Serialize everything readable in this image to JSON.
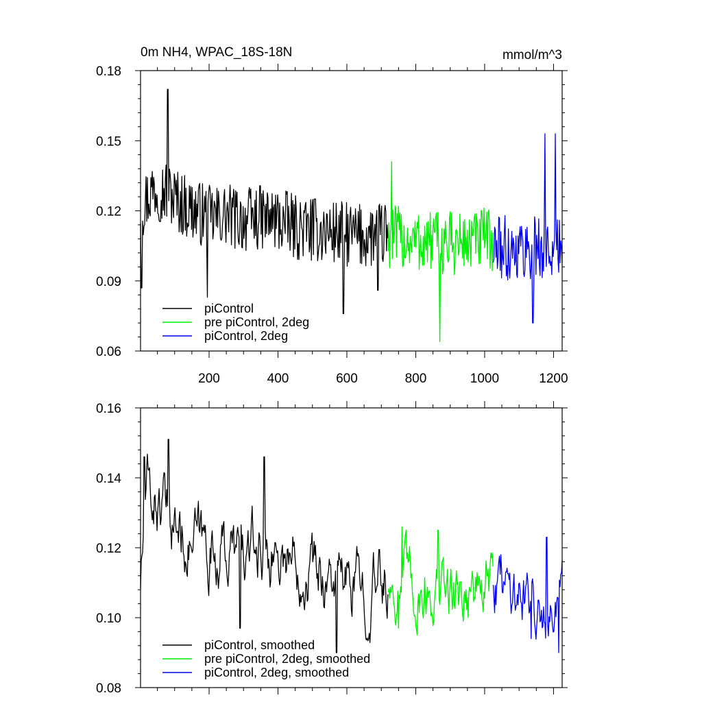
{
  "chart_data": [
    {
      "type": "line",
      "title_left": "0m NH4, WPAC_18S-18N",
      "title_right": "mmol/m^3",
      "xlabel": "",
      "ylabel": "",
      "xlim": [
        1,
        1225
      ],
      "ylim": [
        0.06,
        0.18
      ],
      "x_ticks": [
        200,
        400,
        600,
        800,
        1000,
        1200
      ],
      "y_ticks": [
        "0.06",
        "0.09",
        "0.12",
        "0.15",
        "0.18"
      ],
      "y_tick_values": [
        0.06,
        0.09,
        0.12,
        0.15,
        0.18
      ],
      "legend_position": "bottom-left",
      "series": [
        {
          "name": "piControl",
          "color": "#000000",
          "x_start": 1,
          "x_end": 720,
          "anchors_x": [
            1,
            40,
            80,
            120,
            160,
            200,
            250,
            300,
            350,
            400,
            450,
            500,
            550,
            600,
            650,
            720
          ],
          "anchors_y": [
            0.121,
            0.13,
            0.128,
            0.123,
            0.12,
            0.117,
            0.118,
            0.116,
            0.117,
            0.116,
            0.113,
            0.112,
            0.111,
            0.11,
            0.109,
            0.11
          ],
          "peaks": [
            [
              4,
              0.087
            ],
            [
              80,
              0.172
            ],
            [
              195,
              0.083
            ],
            [
              590,
              0.076
            ],
            [
              690,
              0.086
            ]
          ]
        },
        {
          "name": "pre piControl, 2deg",
          "color": "#00ee00",
          "x_start": 720,
          "x_end": 1025,
          "anchors_x": [
            720,
            800,
            900,
            1025
          ],
          "anchors_y": [
            0.109,
            0.107,
            0.106,
            0.108
          ],
          "peaks": [
            [
              730,
              0.141
            ],
            [
              870,
              0.064
            ]
          ]
        },
        {
          "name": "piControl, 2deg",
          "color": "#0000ee",
          "x_start": 1025,
          "x_end": 1225,
          "anchors_x": [
            1025,
            1100,
            1225
          ],
          "anchors_y": [
            0.104,
            0.104,
            0.104
          ],
          "peaks": [
            [
              1175,
              0.153
            ],
            [
              1205,
              0.153
            ],
            [
              1140,
              0.072
            ]
          ]
        }
      ]
    },
    {
      "type": "line",
      "xlim": [
        1,
        1225
      ],
      "ylim": [
        0.08,
        0.16
      ],
      "x_ticks": [
        200,
        400,
        600,
        800,
        1000,
        1200
      ],
      "y_ticks": [
        "0.08",
        "0.10",
        "0.12",
        "0.14",
        "0.16"
      ],
      "y_tick_values": [
        0.08,
        0.1,
        0.12,
        0.14,
        0.16
      ],
      "legend_position": "bottom-left",
      "series": [
        {
          "name": "piControl, smoothed",
          "color": "#000000",
          "x_start": 1,
          "x_end": 720,
          "anchors_x": [
            1,
            20,
            60,
            80,
            150,
            200,
            250,
            300,
            360,
            400,
            450,
            500,
            550,
            600,
            650,
            720
          ],
          "anchors_y": [
            0.111,
            0.135,
            0.132,
            0.128,
            0.122,
            0.12,
            0.119,
            0.118,
            0.12,
            0.119,
            0.117,
            0.115,
            0.111,
            0.109,
            0.108,
            0.111
          ],
          "peaks": [
            [
              12,
              0.146
            ],
            [
              82,
              0.151
            ],
            [
              360,
              0.146
            ],
            [
              290,
              0.097
            ],
            [
              570,
              0.09
            ]
          ]
        },
        {
          "name": "pre piControl, 2deg, smoothed",
          "color": "#00ee00",
          "x_start": 720,
          "x_end": 1025,
          "anchors_x": [
            720,
            800,
            900,
            1025
          ],
          "anchors_y": [
            0.11,
            0.109,
            0.107,
            0.109
          ],
          "peaks": [
            [
              760,
              0.126
            ],
            [
              865,
              0.125
            ],
            [
              750,
              0.097
            ]
          ]
        },
        {
          "name": "piControl, 2deg, smoothed",
          "color": "#0000ee",
          "x_start": 1025,
          "x_end": 1225,
          "anchors_x": [
            1025,
            1100,
            1225
          ],
          "anchors_y": [
            0.112,
            0.108,
            0.105
          ],
          "peaks": [
            [
              1180,
              0.123
            ],
            [
              1215,
              0.09
            ],
            [
              1135,
              0.094
            ]
          ]
        }
      ]
    }
  ]
}
